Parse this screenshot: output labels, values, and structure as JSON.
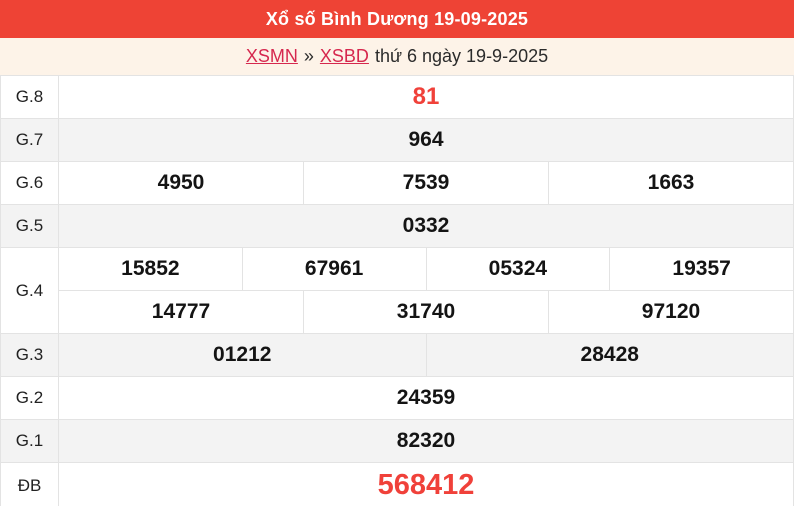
{
  "header": {
    "title": "Xổ số Bình Dương 19-09-2025",
    "bg_color": "#ee4335",
    "text_color": "#ffffff"
  },
  "breadcrumb": {
    "links": [
      {
        "label": "XSMN"
      },
      {
        "label": "XSBD"
      }
    ],
    "separator": "»",
    "suffix": "thứ 6 ngày 19-9-2025",
    "bg_color": "#fdf3e8",
    "link_color": "#d6284e"
  },
  "results_table": {
    "rows": [
      {
        "label": "G.8",
        "highlight": true,
        "cells": [
          [
            "81"
          ]
        ]
      },
      {
        "label": "G.7",
        "highlight": false,
        "cells": [
          [
            "964"
          ]
        ]
      },
      {
        "label": "G.6",
        "highlight": false,
        "cells": [
          [
            "4950",
            "7539",
            "1663"
          ]
        ]
      },
      {
        "label": "G.5",
        "highlight": false,
        "cells": [
          [
            "0332"
          ]
        ]
      },
      {
        "label": "G.4",
        "highlight": false,
        "cells": [
          [
            "15852",
            "67961",
            "05324",
            "19357"
          ],
          [
            "14777",
            "31740",
            "97120"
          ]
        ]
      },
      {
        "label": "G.3",
        "highlight": false,
        "cells": [
          [
            "01212",
            "28428"
          ]
        ]
      },
      {
        "label": "G.2",
        "highlight": false,
        "cells": [
          [
            "24359"
          ]
        ]
      },
      {
        "label": "G.1",
        "highlight": false,
        "cells": [
          [
            "82320"
          ]
        ]
      },
      {
        "label": "ĐB",
        "highlight": true,
        "jackpot": true,
        "cells": [
          [
            "568412"
          ]
        ]
      }
    ],
    "colors": {
      "highlight_number": "#f0413a",
      "shaded_row": "#f3f3f3",
      "border": "#e3e3e3"
    }
  }
}
